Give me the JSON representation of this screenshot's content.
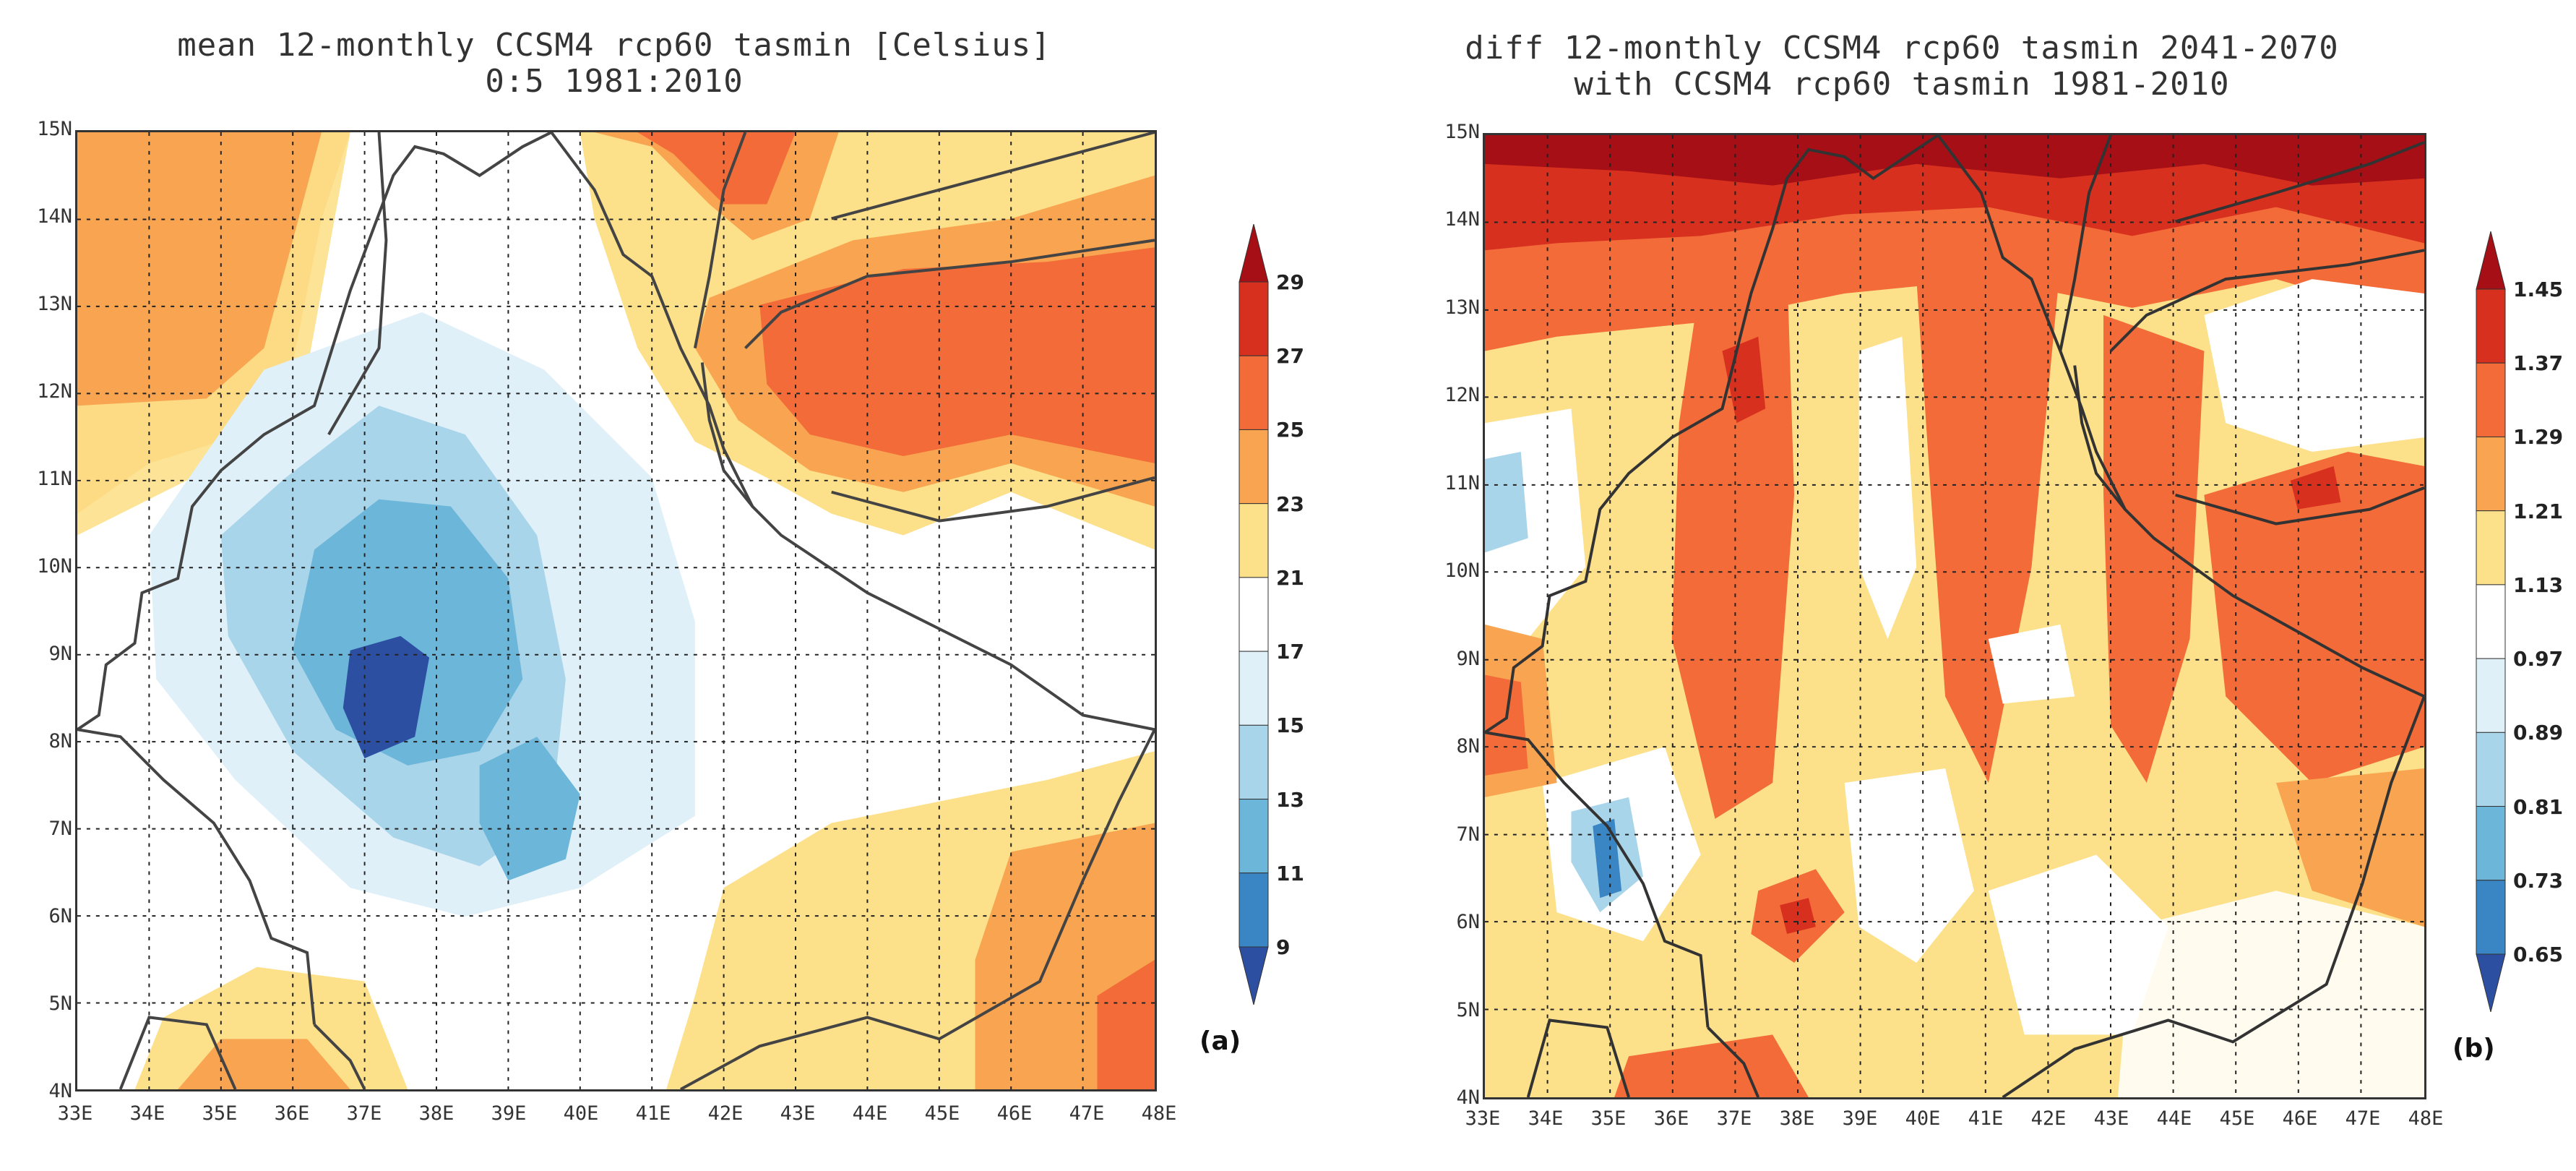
{
  "panels": [
    {
      "id": "a",
      "title_line1": "mean 12-monthly CCSM4 rcp60 tasmin [Celsius]",
      "title_line2": "0:5 1981:2010",
      "panel_label": "(a)",
      "colorbar": {
        "labels": [
          "29",
          "27",
          "25",
          "23",
          "21",
          "17",
          "15",
          "13",
          "11",
          "9"
        ],
        "colors": [
          "#a50f15",
          "#d7301f",
          "#f26b38",
          "#f9a450",
          "#fde08a",
          "#ffffff",
          "#dff0f8",
          "#a9d5ea",
          "#6cb6d9",
          "#3a86c4",
          "#2c4fa2"
        ]
      },
      "lat_labels": [
        "15N",
        "14N",
        "13N",
        "12N",
        "11N",
        "10N",
        "9N",
        "8N",
        "7N",
        "6N",
        "5N",
        "4N"
      ],
      "lon_labels": [
        "33E",
        "34E",
        "35E",
        "36E",
        "37E",
        "38E",
        "39E",
        "40E",
        "41E",
        "42E",
        "43E",
        "44E",
        "45E",
        "46E",
        "47E",
        "48E"
      ]
    },
    {
      "id": "b",
      "title_line1": "diff 12-monthly CCSM4 rcp60 tasmin 2041-2070",
      "title_line2": "with  CCSM4 rcp60 tasmin 1981-2010",
      "panel_label": "(b)",
      "colorbar": {
        "labels": [
          "1.45",
          "1.37",
          "1.29",
          "1.21",
          "1.13",
          "0.97",
          "0.89",
          "0.81",
          "0.73",
          "0.65"
        ],
        "colors": [
          "#a50f15",
          "#d7301f",
          "#f26b38",
          "#f9a450",
          "#fde08a",
          "#ffffff",
          "#dff0f8",
          "#a9d5ea",
          "#6cb6d9",
          "#3a86c4",
          "#2c4fa2"
        ]
      },
      "lat_labels": [
        "15N",
        "14N",
        "13N",
        "12N",
        "11N",
        "10N",
        "9N",
        "8N",
        "7N",
        "6N",
        "5N",
        "4N"
      ],
      "lon_labels": [
        "33E",
        "34E",
        "35E",
        "36E",
        "37E",
        "38E",
        "39E",
        "40E",
        "41E",
        "42E",
        "43E",
        "44E",
        "45E",
        "46E",
        "47E",
        "48E"
      ]
    }
  ]
}
